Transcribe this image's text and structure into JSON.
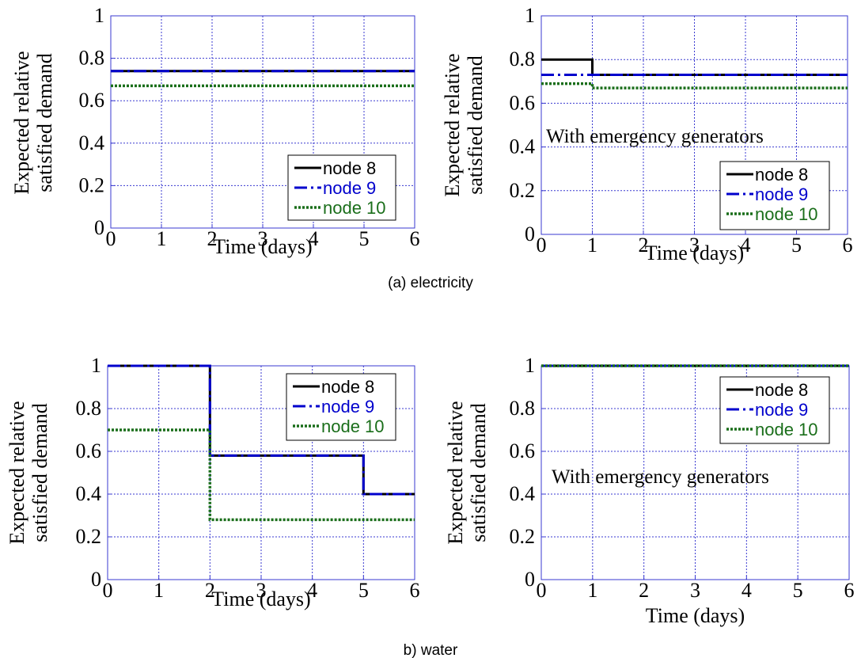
{
  "captions": {
    "electricity": "(a) electricity",
    "water": "b) water"
  },
  "colors": {
    "node8": "#000000",
    "node9": "#0000cc",
    "node10": "#1a6e1a",
    "grid": "#3a3ad0"
  },
  "chart_data": [
    {
      "type": "line",
      "panel": "electricity-left",
      "xlabel": "Time (days)",
      "ylabel": [
        "Expected relative",
        "satisfied demand"
      ],
      "xlim": [
        0,
        6
      ],
      "ylim": [
        0,
        1
      ],
      "xticks": [
        "0",
        "1",
        "2",
        "3",
        "4",
        "5",
        "6"
      ],
      "yticks": [
        "0",
        "0.2",
        "0.4",
        "0.6",
        "0.8",
        "1"
      ],
      "grid": true,
      "legend_position": "bottom-right",
      "annotation": "",
      "series": [
        {
          "name": "node 8",
          "style": "solid",
          "x": [
            0,
            6
          ],
          "y": [
            0.74,
            0.74
          ]
        },
        {
          "name": "node 9",
          "style": "dashdot",
          "x": [
            0,
            6
          ],
          "y": [
            0.74,
            0.74
          ]
        },
        {
          "name": "node 10",
          "style": "dotted",
          "x": [
            0,
            6
          ],
          "y": [
            0.67,
            0.67
          ]
        }
      ]
    },
    {
      "type": "line",
      "panel": "electricity-right",
      "xlabel": "Time (days)",
      "ylabel": [
        "Expected relative",
        "satisfied demand"
      ],
      "xlim": [
        0,
        6
      ],
      "ylim": [
        0,
        1
      ],
      "xticks": [
        "0",
        "1",
        "2",
        "3",
        "4",
        "5",
        "6"
      ],
      "yticks": [
        "0",
        "0.2",
        "0.4",
        "0.6",
        "0.8",
        "1"
      ],
      "grid": true,
      "legend_position": "bottom-right",
      "annotation": "With emergency generators",
      "series": [
        {
          "name": "node 8",
          "style": "solid",
          "x": [
            0,
            1,
            1,
            6
          ],
          "y": [
            0.8,
            0.8,
            0.73,
            0.73
          ]
        },
        {
          "name": "node 9",
          "style": "dashdot",
          "x": [
            0,
            6
          ],
          "y": [
            0.73,
            0.73
          ]
        },
        {
          "name": "node 10",
          "style": "dotted",
          "x": [
            0,
            1,
            1,
            6
          ],
          "y": [
            0.69,
            0.69,
            0.67,
            0.67
          ]
        }
      ]
    },
    {
      "type": "line",
      "panel": "water-left",
      "xlabel": "Time (days)",
      "ylabel": [
        "Expected relative",
        "satisfied demand"
      ],
      "xlim": [
        0,
        6
      ],
      "ylim": [
        0,
        1
      ],
      "xticks": [
        "0",
        "1",
        "2",
        "3",
        "4",
        "5",
        "6"
      ],
      "yticks": [
        "0",
        "0.2",
        "0.4",
        "0.6",
        "0.8",
        "1"
      ],
      "grid": true,
      "legend_position": "top-right",
      "annotation": "",
      "series": [
        {
          "name": "node 8",
          "style": "solid",
          "x": [
            0,
            2,
            2,
            5,
            5,
            6
          ],
          "y": [
            1,
            1,
            0.58,
            0.58,
            0.4,
            0.4
          ]
        },
        {
          "name": "node 9",
          "style": "dashdot",
          "x": [
            0,
            2,
            2,
            5,
            5,
            6
          ],
          "y": [
            1,
            1,
            0.58,
            0.58,
            0.4,
            0.4
          ]
        },
        {
          "name": "node 10",
          "style": "dotted",
          "x": [
            0,
            2,
            2,
            6
          ],
          "y": [
            0.7,
            0.7,
            0.28,
            0.28
          ]
        }
      ]
    },
    {
      "type": "line",
      "panel": "water-right",
      "xlabel": "Time (days)",
      "ylabel": [
        "Expected relative",
        "satisfied demand"
      ],
      "xlim": [
        0,
        6
      ],
      "ylim": [
        0,
        1
      ],
      "xticks": [
        "0",
        "1",
        "2",
        "3",
        "4",
        "5",
        "6"
      ],
      "yticks": [
        "0",
        "0.2",
        "0.4",
        "0.6",
        "0.8",
        "1"
      ],
      "grid": true,
      "legend_position": "top-right",
      "annotation": "With emergency generators",
      "series": [
        {
          "name": "node 8",
          "style": "solid",
          "x": [
            0,
            6
          ],
          "y": [
            1,
            1
          ]
        },
        {
          "name": "node 9",
          "style": "dashdot",
          "x": [
            0,
            6
          ],
          "y": [
            1,
            1
          ]
        },
        {
          "name": "node 10",
          "style": "dotted",
          "x": [
            0,
            6
          ],
          "y": [
            1,
            1
          ]
        }
      ]
    }
  ]
}
